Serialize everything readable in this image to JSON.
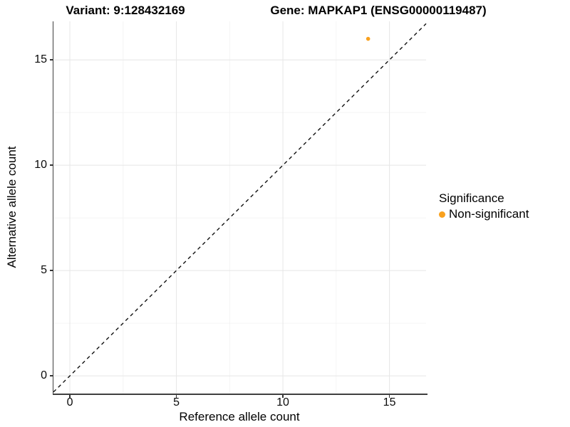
{
  "figure": {
    "title_left": "Variant: 9:128432169",
    "title_right": "Gene: MAPKAP1 (ENSG00000119487)"
  },
  "chart_data": {
    "type": "scatter",
    "title": "Variant: 9:128432169  /  Gene: MAPKAP1 (ENSG00000119487)",
    "xlabel": "Reference allele count",
    "ylabel": "Alternative allele count",
    "xlim": [
      -0.77,
      16.72
    ],
    "ylim": [
      -0.84,
      16.83
    ],
    "x_ticks": [
      0,
      5,
      10,
      15
    ],
    "y_ticks": [
      0,
      5,
      10,
      15
    ],
    "minor_tick_step": 2.5,
    "grid": true,
    "legend_position": "right",
    "identity_line": {
      "type": "dashed",
      "color": "#111111",
      "equation": "y = x"
    },
    "series": [
      {
        "name": "Non-significant",
        "color": "#F9A11E",
        "points": [
          {
            "x": 14,
            "y": 16
          }
        ]
      }
    ],
    "legend": {
      "title": "Significance",
      "items": [
        {
          "label": "Non-significant",
          "color": "#F9A11E"
        }
      ]
    },
    "theme": {
      "background": "#ffffff",
      "axis_line_color": "#3f3f3f",
      "tick_color": "#333333",
      "major_grid_color": "#e8e8e8",
      "minor_grid_color": "#f3f3f3",
      "point_color": "#F9A11E"
    }
  }
}
